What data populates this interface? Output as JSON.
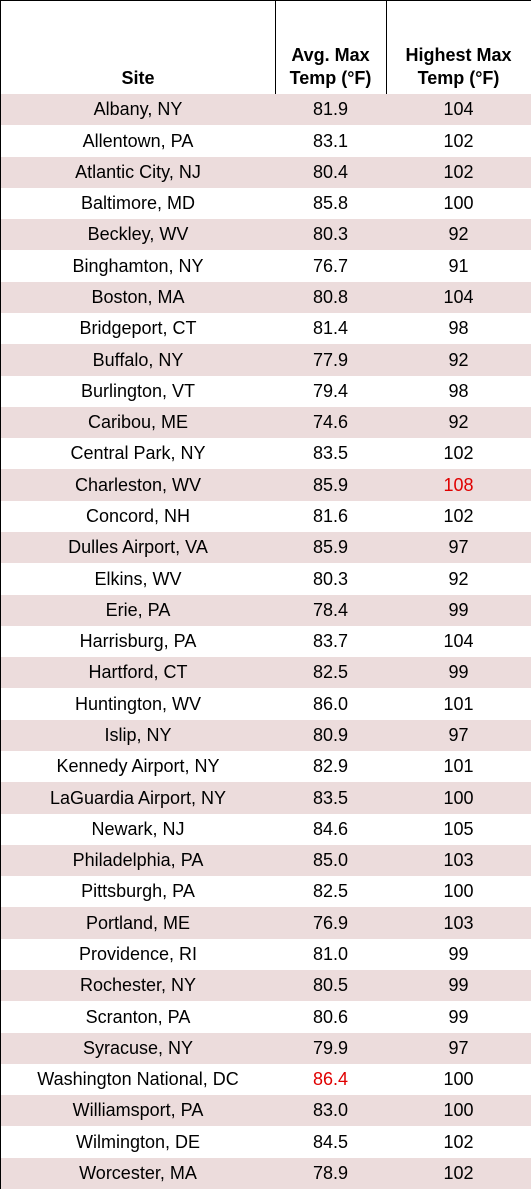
{
  "table": {
    "header": [
      "Site",
      [
        "Avg. Max",
        "Temp (°F)"
      ],
      [
        "Highest Max",
        "Temp (°F)"
      ]
    ],
    "stripe_color": "#ecdcdc",
    "rows": [
      [
        "Albany, NY",
        "81.9",
        "104"
      ],
      [
        "Allentown, PA",
        "83.1",
        "102"
      ],
      [
        "Atlantic City, NJ",
        "80.4",
        "102"
      ],
      [
        "Baltimore, MD",
        "85.8",
        "100"
      ],
      [
        "Beckley, WV",
        "80.3",
        "92"
      ],
      [
        "Binghamton, NY",
        "76.7",
        "91"
      ],
      [
        "Boston, MA",
        "80.8",
        "104"
      ],
      [
        "Bridgeport, CT",
        "81.4",
        "98"
      ],
      [
        "Buffalo, NY",
        "77.9",
        "92"
      ],
      [
        "Burlington, VT",
        "79.4",
        "98"
      ],
      [
        "Caribou, ME",
        "74.6",
        "92"
      ],
      [
        "Central Park, NY",
        "83.5",
        "102"
      ],
      [
        "Charleston, WV",
        "85.9",
        {
          "text": "108",
          "color": "#e00000"
        }
      ],
      [
        "Concord, NH",
        "81.6",
        "102"
      ],
      [
        "Dulles Airport, VA",
        "85.9",
        "97"
      ],
      [
        "Elkins, WV",
        "80.3",
        "92"
      ],
      [
        "Erie, PA",
        "78.4",
        "99"
      ],
      [
        "Harrisburg, PA",
        "83.7",
        "104"
      ],
      [
        "Hartford, CT",
        "82.5",
        "99"
      ],
      [
        "Huntington, WV",
        "86.0",
        "101"
      ],
      [
        "Islip, NY",
        "80.9",
        "97"
      ],
      [
        "Kennedy Airport, NY",
        "82.9",
        "101"
      ],
      [
        "LaGuardia Airport, NY",
        "83.5",
        "100"
      ],
      [
        "Newark, NJ",
        "84.6",
        "105"
      ],
      [
        "Philadelphia, PA",
        "85.0",
        "103"
      ],
      [
        "Pittsburgh, PA",
        "82.5",
        "100"
      ],
      [
        "Portland, ME",
        "76.9",
        "103"
      ],
      [
        "Providence, RI",
        "81.0",
        "99"
      ],
      [
        "Rochester, NY",
        "80.5",
        "99"
      ],
      [
        "Scranton, PA",
        "80.6",
        "99"
      ],
      [
        "Syracuse, NY",
        "79.9",
        "97"
      ],
      [
        "Washington National, DC",
        {
          "text": "86.4",
          "color": "#e00000"
        },
        "100"
      ],
      [
        "Williamsport, PA",
        "83.0",
        "100"
      ],
      [
        "Wilmington, DE",
        "84.5",
        "102"
      ],
      [
        "Worcester, MA",
        "78.9",
        "102"
      ]
    ]
  }
}
